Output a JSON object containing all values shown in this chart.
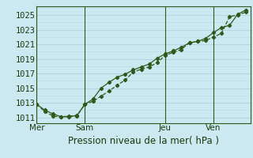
{
  "title": "Pression niveau de la mer( hPa )",
  "bg_color": "#cce8f0",
  "grid_color_major": "#aaccd8",
  "grid_color_minor": "#bdd8e4",
  "line_color1": "#2d5a1b",
  "line_color2": "#2d5a1b",
  "yticks": [
    1011,
    1013,
    1015,
    1017,
    1019,
    1021,
    1023,
    1025
  ],
  "ylim": [
    1010.2,
    1026.2
  ],
  "day_labels": [
    "Mer",
    "Sam",
    "Jeu",
    "Ven"
  ],
  "day_positions": [
    0.0,
    3.0,
    8.0,
    11.0
  ],
  "series1_x": [
    0.0,
    0.5,
    1.0,
    1.5,
    2.0,
    2.5,
    3.0,
    3.5,
    4.0,
    4.5,
    5.0,
    5.5,
    6.0,
    6.5,
    7.0,
    7.5,
    8.0,
    8.5,
    9.0,
    9.5,
    10.0,
    10.5,
    11.0,
    11.5,
    12.0,
    12.5,
    13.0
  ],
  "series1_y": [
    1012.8,
    1011.8,
    1011.2,
    1011.05,
    1011.1,
    1011.2,
    1012.8,
    1013.2,
    1013.9,
    1014.6,
    1015.4,
    1016.1,
    1017.2,
    1017.6,
    1017.9,
    1018.5,
    1019.5,
    1019.9,
    1020.3,
    1021.2,
    1021.4,
    1021.5,
    1022.0,
    1022.5,
    1024.8,
    1025.0,
    1025.4
  ],
  "series2_x": [
    0.0,
    0.5,
    1.0,
    1.5,
    2.0,
    2.5,
    3.0,
    3.5,
    4.0,
    4.5,
    5.0,
    5.5,
    6.0,
    6.5,
    7.0,
    7.5,
    8.0,
    8.5,
    9.0,
    9.5,
    10.0,
    10.5,
    11.0,
    11.5,
    12.0,
    12.5,
    13.0
  ],
  "series2_y": [
    1012.8,
    1012.0,
    1011.5,
    1011.1,
    1011.15,
    1011.25,
    1012.8,
    1013.5,
    1015.0,
    1015.8,
    1016.5,
    1016.9,
    1017.5,
    1017.9,
    1018.3,
    1019.1,
    1019.7,
    1020.1,
    1020.6,
    1021.2,
    1021.4,
    1021.8,
    1022.6,
    1023.3,
    1023.6,
    1025.1,
    1025.7
  ],
  "xlim": [
    0.0,
    13.3
  ],
  "xlabel_fontsize": 8.5,
  "tick_fontsize": 7.5,
  "vline_color": "#2d5a1b",
  "spine_color": "#2d5a1b"
}
